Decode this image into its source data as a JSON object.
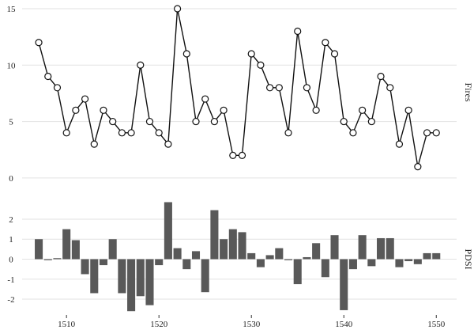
{
  "chart_data": [
    {
      "type": "line",
      "panel": "top",
      "ylabel": "Fires",
      "ylim": [
        -0.5,
        15.7
      ],
      "yticks": [
        0,
        5,
        10,
        15
      ],
      "grid": true,
      "marker": "open-circle",
      "x": [
        1507,
        1508,
        1509,
        1510,
        1511,
        1512,
        1513,
        1514,
        1515,
        1516,
        1517,
        1518,
        1519,
        1520,
        1521,
        1522,
        1523,
        1524,
        1525,
        1526,
        1527,
        1528,
        1529,
        1530,
        1531,
        1532,
        1533,
        1534,
        1535,
        1536,
        1537,
        1538,
        1539,
        1540,
        1541,
        1542,
        1543,
        1544,
        1545,
        1546,
        1547,
        1548,
        1549,
        1550
      ],
      "series": [
        {
          "values": [
            12,
            9,
            8,
            4,
            6,
            7,
            3,
            6,
            5,
            4,
            4,
            10,
            5,
            4,
            3,
            15,
            11,
            5,
            7,
            5,
            6,
            2,
            2,
            11,
            10,
            8,
            8,
            4,
            13,
            8,
            6,
            12,
            11,
            5,
            4,
            6,
            5,
            9,
            8,
            3,
            6,
            1,
            4,
            4
          ]
        }
      ]
    },
    {
      "type": "bar",
      "panel": "bottom",
      "ylabel": "PDSI",
      "ylim": [
        -2.75,
        2.75
      ],
      "yticks": [
        -2,
        -1,
        0,
        1,
        2
      ],
      "grid": true,
      "xlabel": "",
      "xticks": [
        1510,
        1520,
        1530,
        1540,
        1550
      ],
      "color": "#595959",
      "x": [
        1507,
        1508,
        1509,
        1510,
        1511,
        1512,
        1513,
        1514,
        1515,
        1516,
        1517,
        1518,
        1519,
        1520,
        1521,
        1522,
        1523,
        1524,
        1525,
        1526,
        1527,
        1528,
        1529,
        1530,
        1531,
        1532,
        1533,
        1534,
        1535,
        1536,
        1537,
        1538,
        1539,
        1540,
        1541,
        1542,
        1543,
        1544,
        1545,
        1546,
        1547,
        1548,
        1549,
        1550
      ],
      "series": [
        {
          "values": [
            1.0,
            -0.05,
            0.05,
            1.5,
            0.95,
            -0.75,
            -1.7,
            -0.3,
            1.0,
            -1.7,
            -2.6,
            -1.85,
            -2.3,
            -0.3,
            2.85,
            0.55,
            -0.5,
            0.4,
            -1.65,
            2.45,
            1.0,
            1.5,
            1.35,
            0.3,
            -0.4,
            0.2,
            0.55,
            -0.05,
            -1.25,
            0.1,
            0.8,
            -0.9,
            1.2,
            -2.55,
            -0.5,
            1.2,
            -0.35,
            1.05,
            1.05,
            -0.4,
            -0.1,
            -0.25,
            0.3,
            0.3
          ]
        }
      ]
    }
  ]
}
